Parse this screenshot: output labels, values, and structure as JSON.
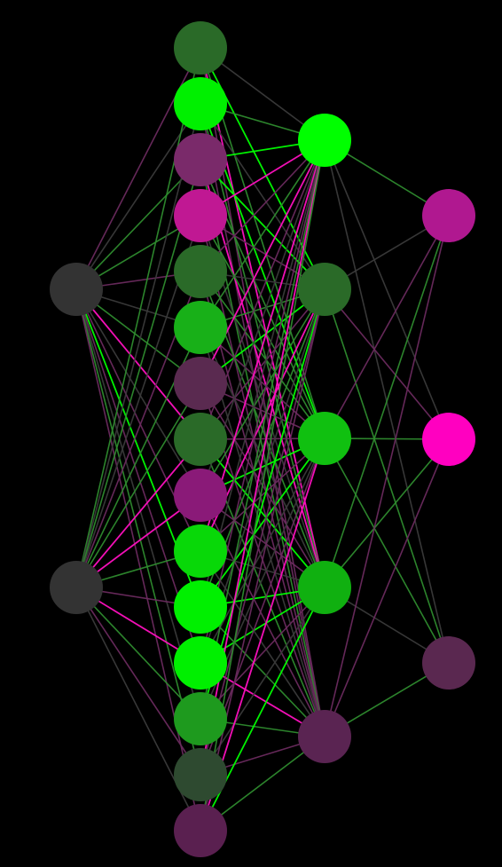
{
  "diagram": {
    "type": "neural-network",
    "background": "#000000",
    "layers": [
      {
        "name": "input",
        "nodes": [
          "#333333",
          "#333333"
        ]
      },
      {
        "name": "hidden-1",
        "nodes": [
          "#2a6a28",
          "#00f000",
          "#7a2a6a",
          "#c01893",
          "#2a6a28",
          "#18b018",
          "#5a2a50",
          "#2a6a28",
          "#8a1a78",
          "#08d808",
          "#00f000",
          "#00f000",
          "#1e9a1e",
          "#2e4a30",
          "#5a2050"
        ]
      },
      {
        "name": "hidden-2",
        "nodes": [
          "#00ff00",
          "#2a6a28",
          "#10c010",
          "#10b010",
          "#5a2452"
        ]
      },
      {
        "name": "output",
        "nodes": [
          "#b01890",
          "#ff00c0",
          "#5a2850"
        ]
      }
    ],
    "edge_colors": {
      "positive_strong": "#00ff00",
      "positive": "#2e8b2e",
      "negative_strong": "#ff10c0",
      "negative": "#6a2a5e",
      "neutral": "#3a3a3a"
    }
  }
}
